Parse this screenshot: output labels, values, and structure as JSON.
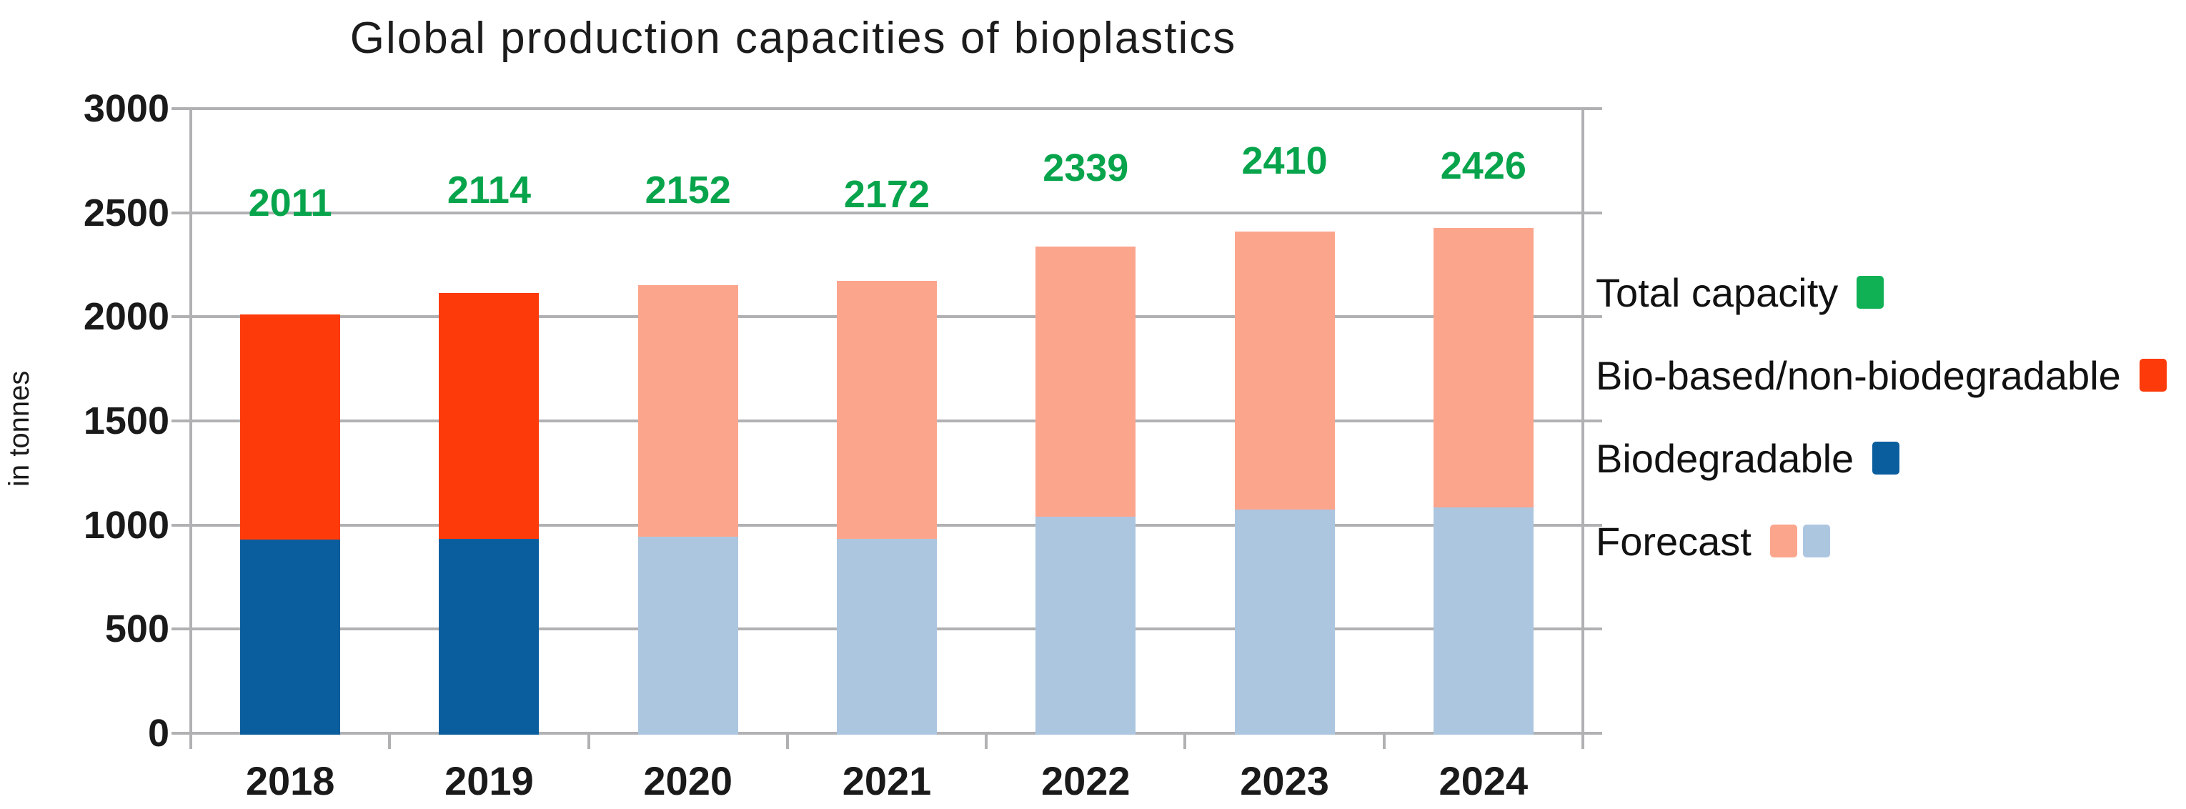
{
  "page": {
    "background": "#ffffff"
  },
  "chart_data": {
    "type": "bar",
    "stacked": true,
    "title": "Global production capacities of bioplastics",
    "ylabel": "in tonnes",
    "xlabel": "",
    "ylim": [
      0,
      3000
    ],
    "yticks": [
      0,
      500,
      1000,
      1500,
      2000,
      2500,
      3000
    ],
    "grid": true,
    "legend_position": "right",
    "categories": [
      "2018",
      "2019",
      "2020",
      "2021",
      "2022",
      "2023",
      "2024"
    ],
    "series": [
      {
        "name": "Biodegradable",
        "stack_position": "bottom",
        "values": [
          930,
          935,
          945,
          935,
          1040,
          1075,
          1085
        ],
        "color_actual": "#0b5e9e",
        "color_forecast": "#adc6e0"
      },
      {
        "name": "Bio-based/non-biodegradable",
        "stack_position": "top",
        "values": [
          1081,
          1179,
          1207,
          1237,
          1299,
          1335,
          1341
        ],
        "color_actual": "#fc3a0a",
        "color_forecast": "#fca58d"
      }
    ],
    "totals": [
      2011,
      2114,
      2152,
      2172,
      2339,
      2410,
      2426
    ],
    "forecast_start_index": 2,
    "legend": [
      {
        "label": "Total capacity",
        "swatches": [
          "#10b155"
        ]
      },
      {
        "label": "Bio-based/non-biodegradable",
        "swatches": [
          "#fc3a0a"
        ]
      },
      {
        "label": "Biodegradable",
        "swatches": [
          "#0b5e9e"
        ]
      },
      {
        "label": "Forecast",
        "swatches": [
          "#fca58d",
          "#adc6e0"
        ]
      }
    ],
    "colors": {
      "total_label": "#07a44c",
      "total_swatch": "#10b155",
      "gridline": "#b1b1b4",
      "axis_text": "#1a1a1a"
    }
  }
}
